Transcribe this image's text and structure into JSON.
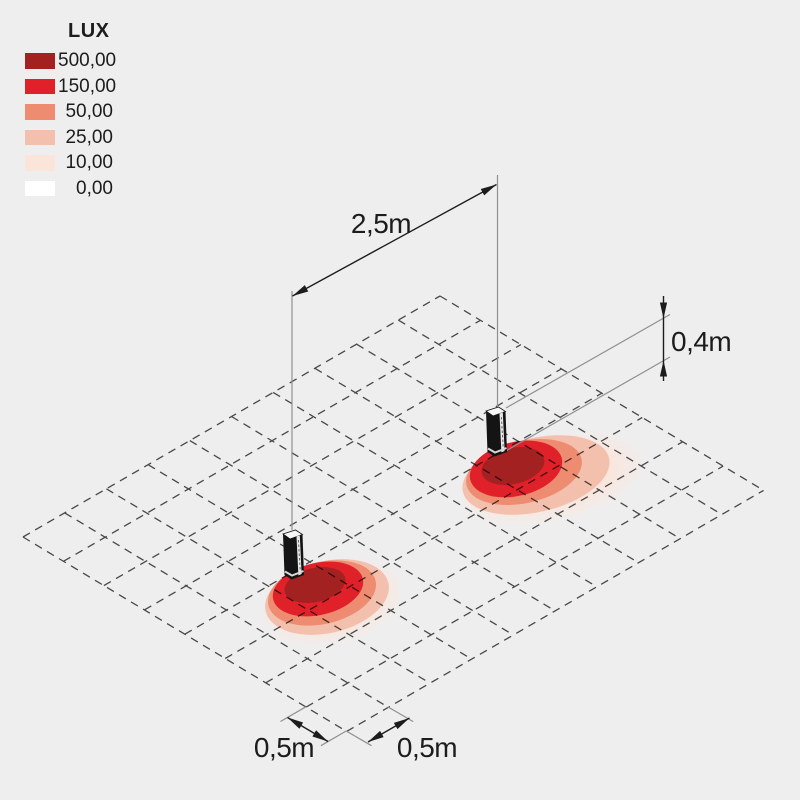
{
  "legend": {
    "title": "LUX",
    "items": [
      {
        "value": "500,00",
        "color": "#a32121"
      },
      {
        "value": "150,00",
        "color": "#e0212a"
      },
      {
        "value": "50,00",
        "color": "#ee8c72"
      },
      {
        "value": "25,00",
        "color": "#f4c0ae"
      },
      {
        "value": "10,00",
        "color": "#fbe5db"
      },
      {
        "value": "0,00",
        "color": "#ffffff"
      }
    ]
  },
  "annotations": {
    "fixture_spacing": "2,5m",
    "fixture_length": "0,4m",
    "grid_cell_left": "0,5m",
    "grid_cell_right": "0,5m"
  },
  "colors": {
    "background": "#efeeee",
    "grid_line": "#4d4d4d",
    "dimension_line": "#1c1c1c",
    "reference_line": "#909090",
    "fixture_body": "#141414",
    "text": "#1c1c1c"
  }
}
